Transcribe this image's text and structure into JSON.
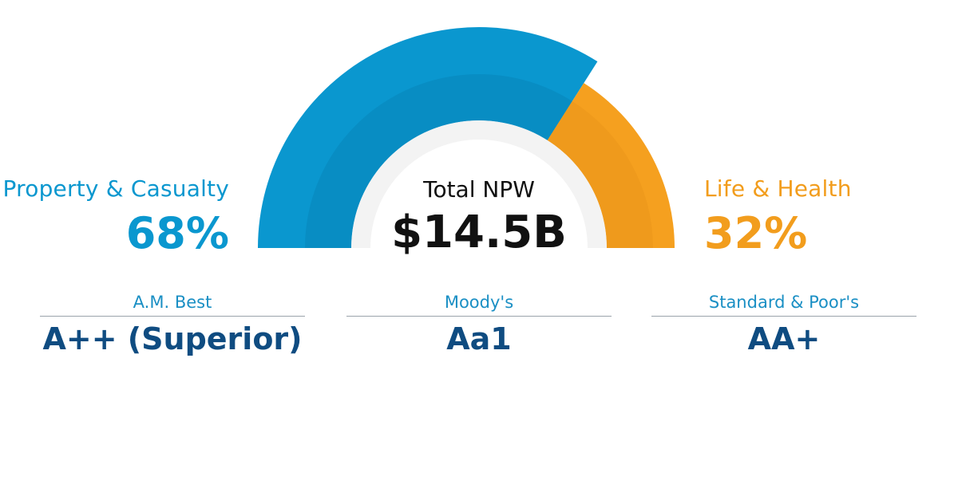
{
  "colors": {
    "property_casualty": "#0a97cf",
    "property_casualty_inner": "#088dc3",
    "life_health": "#f5a01f",
    "life_health_inner": "#ef9a1c",
    "inner_ring": "#f3f3f3",
    "rating_text": "#0f4c81"
  },
  "chart_data": {
    "type": "pie",
    "style": "half-donut gauge",
    "title": "Total NPW",
    "total": "$14.5B",
    "series": [
      {
        "name": "Property & Casualty",
        "value": 68,
        "label": "68%"
      },
      {
        "name": "Life & Health",
        "value": 32,
        "label": "32%"
      }
    ]
  },
  "ratings": [
    {
      "agency": "A.M. Best",
      "grade": "A++ (Superior)"
    },
    {
      "agency": "Moody's",
      "grade": "Aa1"
    },
    {
      "agency": "Standard & Poor's",
      "grade": "AA+"
    }
  ]
}
